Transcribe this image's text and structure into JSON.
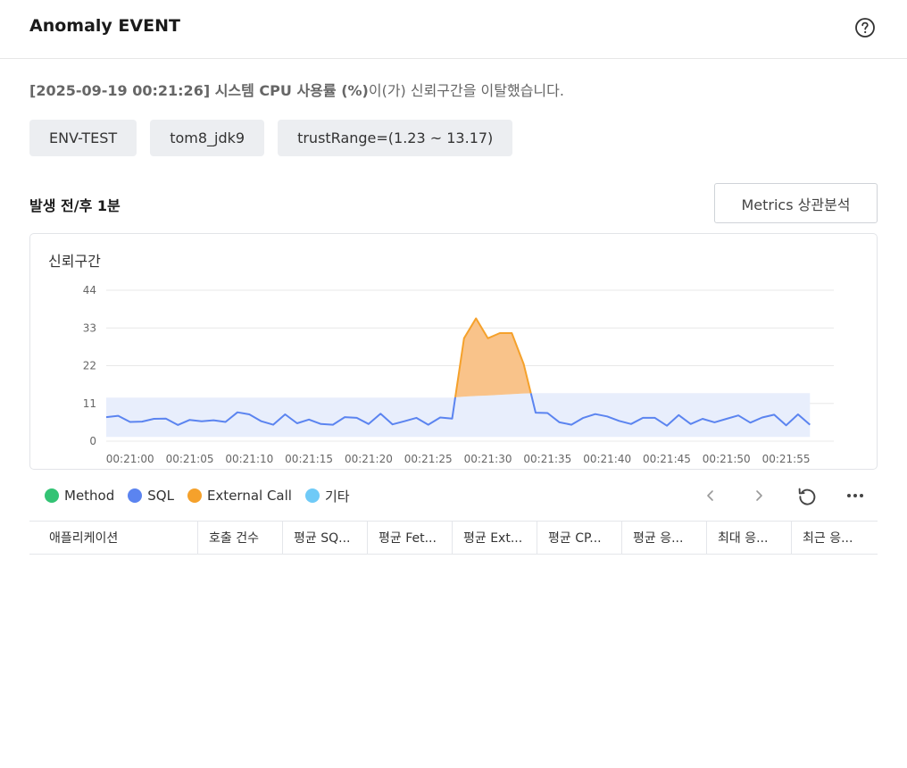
{
  "header": {
    "title": "Anomaly EVENT"
  },
  "message": {
    "strong": "[2025-09-19 00:21:26] 시스템 CPU 사용률 (%)",
    "rest": "이(가) 신뢰구간을 이탈했습니다."
  },
  "tags": [
    "ENV-TEST",
    "tom8_jdk9",
    "trustRange=(1.23 ~ 13.17)"
  ],
  "section": {
    "title": "발생 전/후 1분",
    "metrics_button": "Metrics 상관분석"
  },
  "chart_data": {
    "type": "line",
    "title": "신뢰구간",
    "x_tick_labels": [
      "00:21:00",
      "00:21:05",
      "00:21:10",
      "00:21:15",
      "00:21:20",
      "00:21:25",
      "00:21:30",
      "00:21:35",
      "00:21:40",
      "00:21:45",
      "00:21:50",
      "00:21:55"
    ],
    "y_ticks": [
      0,
      11,
      22,
      33,
      44
    ],
    "ylim": [
      0,
      44
    ],
    "x_start_sec": -2,
    "x_step_sec": 1,
    "x_end_sec": 59,
    "values": [
      7.0,
      7.4,
      5.6,
      5.7,
      6.5,
      6.6,
      4.7,
      6.2,
      5.8,
      6.1,
      5.6,
      8.4,
      7.8,
      5.8,
      4.8,
      7.8,
      5.2,
      6.3,
      5.0,
      4.8,
      7.0,
      6.8,
      5.0,
      8.0,
      4.9,
      5.8,
      6.8,
      4.8,
      6.9,
      6.6,
      30.0,
      35.8,
      30.0,
      31.5,
      31.5,
      22.5,
      8.3,
      8.2,
      5.5,
      4.8,
      6.8,
      7.9,
      7.2,
      5.9,
      5.0,
      6.8,
      6.8,
      4.5,
      7.6,
      5.0,
      6.5,
      5.5,
      6.5,
      7.5,
      5.4,
      6.9,
      7.7,
      4.6,
      7.8,
      4.8
    ],
    "band_lower": [
      1.23,
      1.23,
      1.23,
      1.23,
      1.23,
      1.23,
      1.23,
      1.23,
      1.23,
      1.23,
      1.23,
      1.23,
      1.23,
      1.23,
      1.23,
      1.23,
      1.23,
      1.23,
      1.23,
      1.23,
      1.23,
      1.23,
      1.23,
      1.23,
      1.23,
      1.23,
      1.23,
      1.23,
      1.23,
      1.23,
      1.23,
      1.23,
      1.23,
      1.23,
      1.23,
      1.23,
      1.23,
      1.23,
      1.23,
      1.23,
      1.23,
      1.23,
      1.23,
      1.23,
      1.23,
      1.23,
      1.23,
      1.23,
      1.23,
      1.23,
      1.23,
      1.23,
      1.23,
      1.23,
      1.23,
      1.23,
      1.23,
      1.23,
      1.23,
      1.23
    ],
    "band_upper": [
      12.7,
      12.7,
      12.7,
      12.7,
      12.7,
      12.7,
      12.7,
      12.7,
      12.7,
      12.7,
      12.7,
      12.7,
      12.7,
      12.7,
      12.7,
      12.7,
      12.7,
      12.7,
      12.7,
      12.7,
      12.7,
      12.7,
      12.7,
      12.7,
      12.7,
      12.7,
      12.7,
      12.7,
      12.7,
      12.7,
      13.0,
      13.17,
      13.3,
      13.5,
      13.7,
      13.9,
      14.0,
      14.0,
      14.0,
      14.0,
      14.0,
      14.0,
      14.0,
      14.0,
      14.0,
      14.0,
      14.0,
      14.0,
      14.0,
      14.0,
      14.0,
      14.0,
      14.0,
      14.0,
      14.0,
      14.0,
      14.0,
      14.0,
      14.0,
      14.0
    ],
    "colors": {
      "normal": "#5b84f0",
      "anomaly": "#f5a12b",
      "anomaly_fill": "#f9c38a",
      "band": "#e8eefc",
      "grid": "#e8e8e8",
      "tick": "#666666"
    }
  },
  "legend": [
    {
      "label": "Method",
      "color": "#33c374"
    },
    {
      "label": "SQL",
      "color": "#5b84f0"
    },
    {
      "label": "External Call",
      "color": "#f5a12b"
    },
    {
      "label": "기타",
      "color": "#6fcaf7"
    }
  ],
  "toolbar": {
    "prev_icon": "chevron-left-icon",
    "next_icon": "chevron-right-icon",
    "refresh_icon": "refresh-icon",
    "more_icon": "more-horizontal-icon"
  },
  "table": {
    "columns": [
      "애플리케이션",
      "호출 건수",
      "평균 SQ...",
      "평균 Fet...",
      "평균 Ext...",
      "평균 CP...",
      "평균 응...",
      "최대 응...",
      "최근 응..."
    ]
  }
}
